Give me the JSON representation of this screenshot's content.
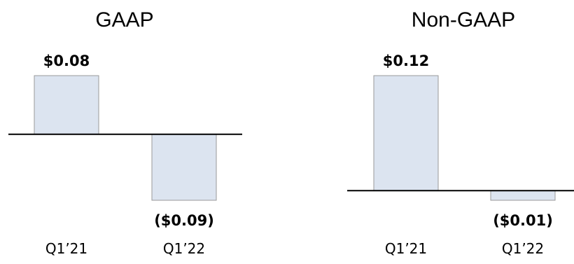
{
  "chart_data": [
    {
      "type": "bar",
      "title": "GAAP",
      "xlabel": "",
      "ylabel": "",
      "categories": [
        "Q1’21",
        "Q1’22"
      ],
      "values": [
        0.08,
        -0.09
      ],
      "data_labels": [
        "$0.08",
        "($0.09)"
      ],
      "ylim": [
        -0.09,
        0.08
      ],
      "grid": false,
      "legend": "none",
      "bar_color": "#dce4f0",
      "bar_border": "#9a9a9a"
    },
    {
      "type": "bar",
      "title": "Non-GAAP",
      "xlabel": "",
      "ylabel": "",
      "categories": [
        "Q1’21",
        "Q1’22"
      ],
      "values": [
        0.12,
        -0.01
      ],
      "data_labels": [
        "$0.12",
        "($0.01)"
      ],
      "ylim": [
        -0.01,
        0.12
      ],
      "grid": false,
      "legend": "none",
      "bar_color": "#dce4f0",
      "bar_border": "#9a9a9a"
    }
  ]
}
